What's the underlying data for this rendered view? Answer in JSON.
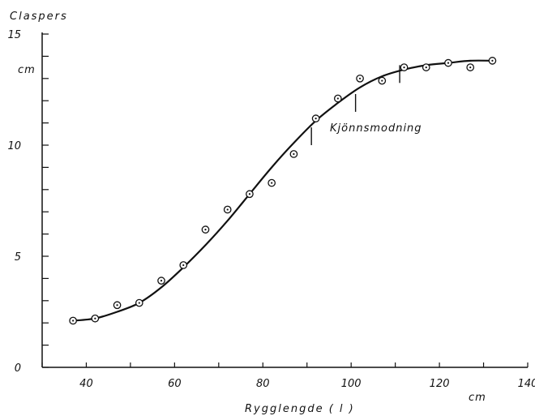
{
  "chart_data": {
    "type": "scatter",
    "title": "",
    "ylabel": "Claspers",
    "y_unit": "cm",
    "xlabel": "Rygglengde ( l )",
    "x_unit": "cm",
    "xlim": [
      30,
      140
    ],
    "ylim": [
      0,
      15
    ],
    "x_ticks": [
      40,
      60,
      80,
      100,
      120,
      140
    ],
    "y_ticks": [
      0,
      5,
      10,
      15
    ],
    "y_minor_step": 1,
    "x_minor_step": 10,
    "grid": false,
    "colors": {
      "ink": "#111111",
      "background": "#ffffff"
    },
    "series": [
      {
        "type": "scatter",
        "marker": "circle-dot",
        "x": [
          37,
          42,
          47,
          52,
          57,
          62,
          67,
          72,
          77,
          82,
          87,
          92,
          97,
          102,
          107,
          112,
          117,
          122,
          127,
          132
        ],
        "y": [
          2.1,
          2.2,
          2.8,
          2.9,
          3.9,
          4.6,
          6.2,
          7.1,
          7.8,
          8.3,
          9.6,
          11.2,
          12.1,
          13.0,
          12.9,
          13.5,
          13.5,
          13.7,
          13.5,
          13.8
        ]
      },
      {
        "type": "line",
        "x": [
          37,
          42,
          47,
          52,
          57,
          62,
          67,
          72,
          77,
          82,
          87,
          92,
          97,
          102,
          107,
          112,
          117,
          122,
          127,
          132
        ],
        "y": [
          2.1,
          2.2,
          2.5,
          2.9,
          3.6,
          4.5,
          5.5,
          6.6,
          7.8,
          9.0,
          10.1,
          11.1,
          11.9,
          12.6,
          13.1,
          13.4,
          13.6,
          13.7,
          13.8,
          13.8
        ]
      }
    ],
    "annotation": {
      "text": "Kjönnsmodning",
      "markers": [
        {
          "x": 91,
          "y_from": 10.0,
          "y_to": 10.8
        },
        {
          "x": 101,
          "y_from": 11.5,
          "y_to": 12.3
        },
        {
          "x": 111,
          "y_from": 12.8,
          "y_to": 13.6
        }
      ]
    }
  }
}
